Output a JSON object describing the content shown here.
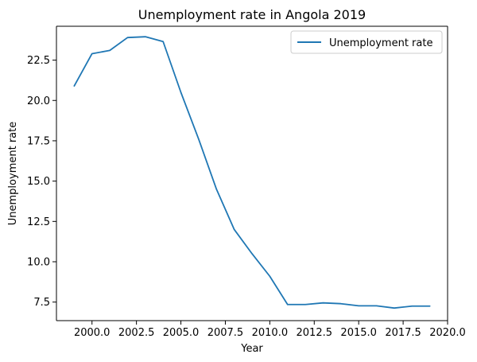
{
  "chart_data": {
    "type": "line",
    "title": "Unemployment rate in Angola 2019",
    "xlabel": "Year",
    "ylabel": "Unemployment rate",
    "xlim": [
      1998.0,
      2020.0
    ],
    "ylim": [
      6.35,
      24.6
    ],
    "x_ticks": [
      2000.0,
      2002.5,
      2005.0,
      2007.5,
      2010.0,
      2012.5,
      2015.0,
      2017.5,
      2020.0
    ],
    "x_tick_labels": [
      "2000.0",
      "2002.5",
      "2005.0",
      "2007.5",
      "2010.0",
      "2012.5",
      "2015.0",
      "2017.5",
      "2020.0"
    ],
    "y_ticks": [
      7.5,
      10.0,
      12.5,
      15.0,
      17.5,
      20.0,
      22.5
    ],
    "y_tick_labels": [
      "7.5",
      "10.0",
      "12.5",
      "15.0",
      "17.5",
      "20.0",
      "22.5"
    ],
    "grid": false,
    "legend_position": "top-right",
    "series": [
      {
        "name": "Unemployment rate",
        "color": "#1f77b4",
        "x": [
          1999,
          2000,
          2001,
          2002,
          2003,
          2004,
          2005,
          2006,
          2007,
          2008,
          2009,
          2010,
          2011,
          2012,
          2013,
          2014,
          2015,
          2016,
          2017,
          2018,
          2019
        ],
        "y": [
          20.9,
          22.9,
          23.1,
          23.9,
          23.95,
          23.65,
          20.5,
          17.6,
          14.5,
          12.0,
          10.5,
          9.1,
          7.35,
          7.35,
          7.45,
          7.4,
          7.27,
          7.27,
          7.13,
          7.25,
          7.25
        ]
      }
    ]
  }
}
